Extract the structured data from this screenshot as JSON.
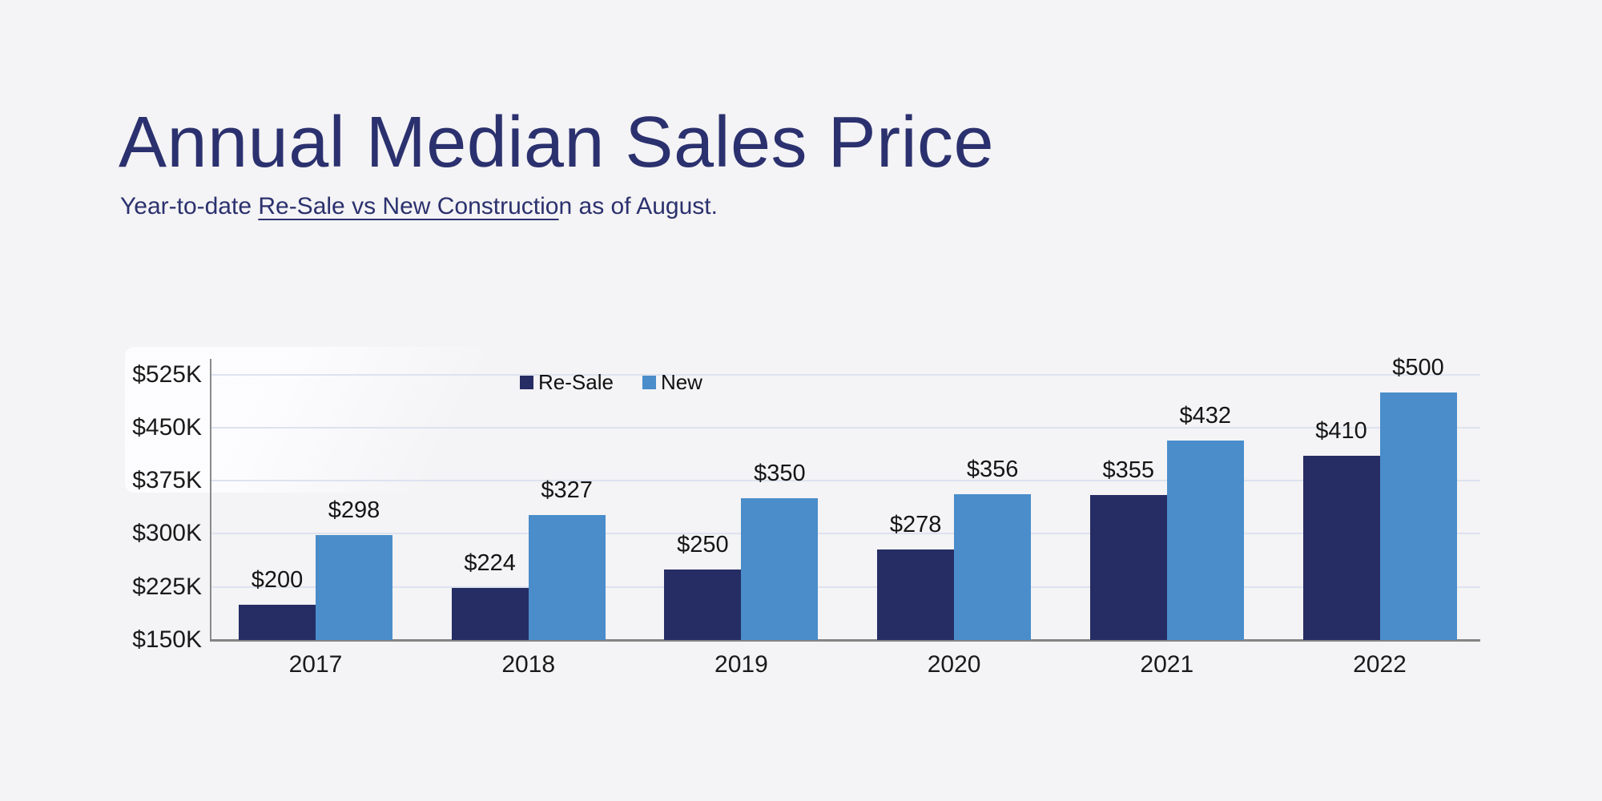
{
  "page": {
    "background_color": "#f4f3f5",
    "accent_navy": "#2b316e"
  },
  "header": {
    "title": "Annual Median Sales Price",
    "subtitle": {
      "prefix": "Year-to-date ",
      "underlined": "Re-Sale vs New Constructio",
      "suffix": "n as of August."
    }
  },
  "chart_data": {
    "type": "bar",
    "title": "Annual Median Sales Price",
    "subtitle": "Year-to-date Re-Sale vs New Construction as of August.",
    "categories": [
      "2017",
      "2018",
      "2019",
      "2020",
      "2021",
      "2022"
    ],
    "series": [
      {
        "name": "Re-Sale",
        "color": "#262d64",
        "values": [
          200,
          224,
          250,
          278,
          355,
          410
        ],
        "data_labels": [
          "$200",
          "$224",
          "$250",
          "$278",
          "$355",
          "$410"
        ]
      },
      {
        "name": "New",
        "color": "#4a8dca",
        "values": [
          298,
          327,
          350,
          356,
          432,
          500
        ],
        "data_labels": [
          "$298",
          "$327",
          "$350",
          "$356",
          "$432",
          "$500"
        ]
      }
    ],
    "xlabel": "",
    "ylabel": "",
    "value_unit": "thousand USD",
    "yaxis": {
      "min": 150,
      "max": 525,
      "tick_step": 75,
      "ticks": [
        {
          "value": 150,
          "label": "$150K"
        },
        {
          "value": 225,
          "label": "$225K"
        },
        {
          "value": 300,
          "label": "$300K"
        },
        {
          "value": 375,
          "label": "$375K"
        },
        {
          "value": 450,
          "label": "$450K"
        },
        {
          "value": 525,
          "label": "$525K"
        }
      ]
    },
    "grid": true,
    "gridline_color": "#dde3ef",
    "axis_color": "#8a8a8a",
    "label_color": "#1a1a1a",
    "legend_position": "inside-top, left of center",
    "legend_entries": [
      "Re-Sale",
      "New"
    ]
  }
}
